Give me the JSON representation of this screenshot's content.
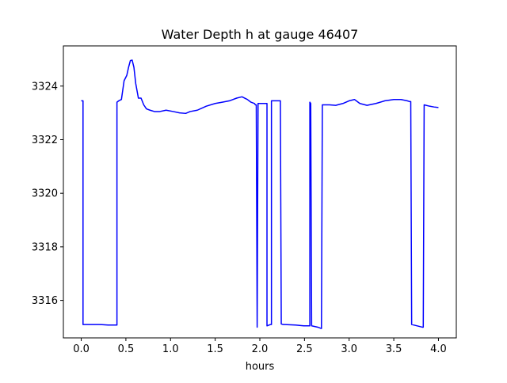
{
  "chart_data": {
    "type": "line",
    "title": "Water Depth h at gauge 46407",
    "xlabel": "hours",
    "ylabel": "",
    "xlim": [
      -0.2,
      4.2
    ],
    "ylim": [
      3314.6,
      3325.5
    ],
    "xticks": [
      0.0,
      0.5,
      1.0,
      1.5,
      2.0,
      2.5,
      3.0,
      3.5,
      4.0
    ],
    "xtick_labels": [
      "0.0",
      "0.5",
      "1.0",
      "1.5",
      "2.0",
      "2.5",
      "3.0",
      "3.5",
      "4.0"
    ],
    "yticks": [
      3316,
      3318,
      3320,
      3322,
      3324
    ],
    "ytick_labels": [
      "3316",
      "3318",
      "3320",
      "3322",
      "3324"
    ],
    "grid": false,
    "line_color": "#0000ff",
    "series": [
      {
        "name": "",
        "x": [
          0.0,
          0.02,
          0.02,
          0.1,
          0.2,
          0.3,
          0.39,
          0.4,
          0.4,
          0.42,
          0.45,
          0.48,
          0.51,
          0.53,
          0.55,
          0.57,
          0.59,
          0.61,
          0.64,
          0.67,
          0.7,
          0.73,
          0.77,
          0.82,
          0.88,
          0.95,
          1.03,
          1.1,
          1.17,
          1.22,
          1.3,
          1.4,
          1.5,
          1.58,
          1.66,
          1.74,
          1.8,
          1.86,
          1.9,
          1.94,
          1.95,
          1.96,
          1.97,
          1.98,
          1.99,
          2.07,
          2.08,
          2.08,
          2.12,
          2.13,
          2.13,
          2.18,
          2.2,
          2.21,
          2.23,
          2.24,
          2.26,
          2.28,
          2.4,
          2.49,
          2.55,
          2.56,
          2.56,
          2.57,
          2.58,
          2.65,
          2.69,
          2.7,
          2.78,
          2.85,
          2.93,
          3.0,
          3.06,
          3.12,
          3.2,
          3.3,
          3.4,
          3.5,
          3.58,
          3.65,
          3.68,
          3.69,
          3.7,
          3.82,
          3.83,
          3.84,
          3.9,
          3.95,
          4.0
        ],
        "y": [
          3323.45,
          3323.45,
          3315.1,
          3315.1,
          3315.1,
          3315.08,
          3315.08,
          3315.08,
          3323.4,
          3323.45,
          3323.5,
          3324.2,
          3324.4,
          3324.7,
          3324.95,
          3324.97,
          3324.7,
          3324.1,
          3323.55,
          3323.55,
          3323.3,
          3323.15,
          3323.1,
          3323.05,
          3323.05,
          3323.1,
          3323.05,
          3323.0,
          3322.98,
          3323.05,
          3323.1,
          3323.25,
          3323.35,
          3323.4,
          3323.45,
          3323.55,
          3323.6,
          3323.5,
          3323.4,
          3323.35,
          3323.3,
          3323.3,
          3315.0,
          3323.35,
          3323.35,
          3323.35,
          3323.35,
          3315.05,
          3315.1,
          3315.1,
          3323.45,
          3323.45,
          3323.45,
          3323.45,
          3323.45,
          3315.12,
          3315.1,
          3315.1,
          3315.08,
          3315.05,
          3315.05,
          3315.05,
          3323.4,
          3323.35,
          3315.05,
          3315.0,
          3314.95,
          3323.3,
          3323.3,
          3323.28,
          3323.35,
          3323.45,
          3323.5,
          3323.35,
          3323.28,
          3323.35,
          3323.45,
          3323.5,
          3323.5,
          3323.45,
          3323.42,
          3323.42,
          3315.1,
          3315.0,
          3315.0,
          3323.3,
          3323.25,
          3323.22,
          3323.2
        ]
      }
    ]
  }
}
